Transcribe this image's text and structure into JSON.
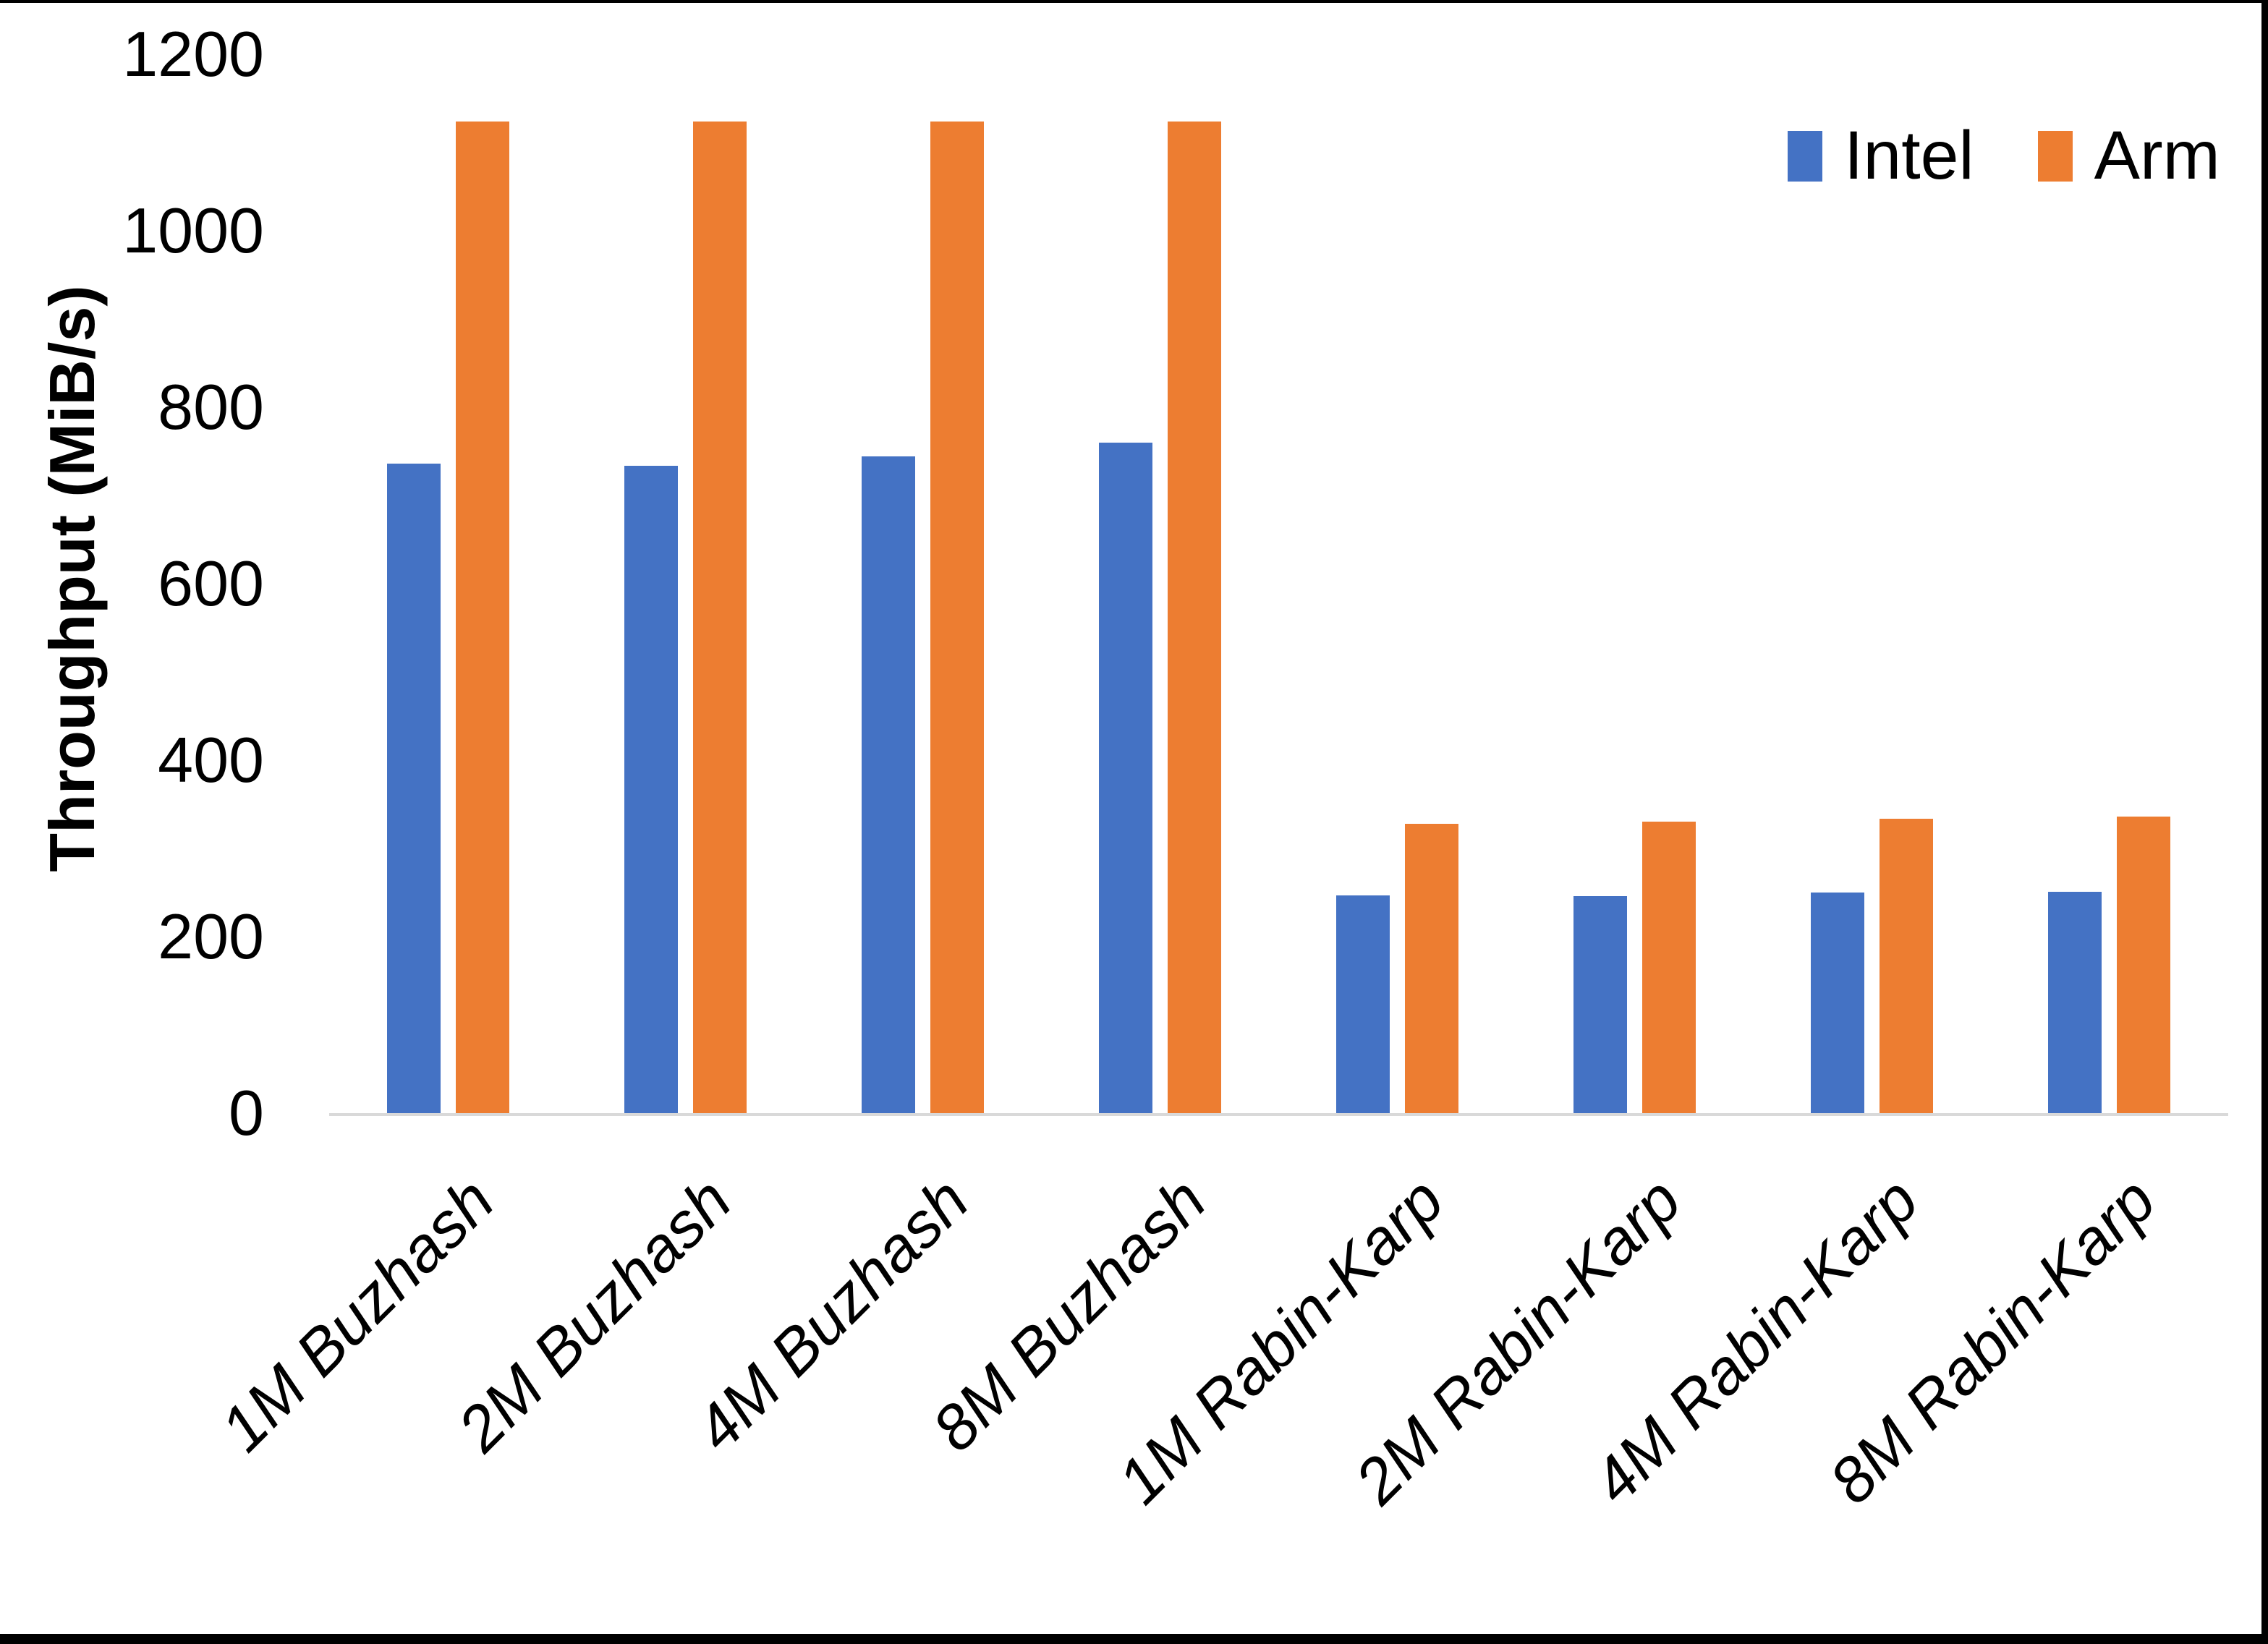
{
  "chart_data": {
    "type": "bar",
    "title": "",
    "categories": [
      "1M Buzhash",
      "2M Buzhash",
      "4M Buzhash",
      "8M Buzhash",
      "1M Rabin-Karp",
      "2M Rabin-Karp",
      "4M Rabin-Karp",
      "8M Rabin-Karp"
    ],
    "series": [
      {
        "name": "Intel",
        "color": "#4472C4",
        "values": [
          736,
          734,
          744,
          760,
          247,
          246,
          250,
          251
        ]
      },
      {
        "name": "Arm",
        "color": "#ED7D31",
        "values": [
          1124,
          1124,
          1124,
          1124,
          328,
          330,
          334,
          336
        ]
      }
    ],
    "xlabel": "",
    "ylabel": "Throughput (MiB/s)",
    "ylim": [
      0,
      1200
    ],
    "y_ticks": [
      0,
      200,
      400,
      600,
      800,
      1000,
      1200
    ],
    "grid": false,
    "legend_position": "top-right",
    "x_tick_rotation_deg": 45,
    "x_tick_style": "italic",
    "axis_line_color": "#D9D9D9",
    "text_color": "#000000",
    "page_border_color": "#000000"
  }
}
